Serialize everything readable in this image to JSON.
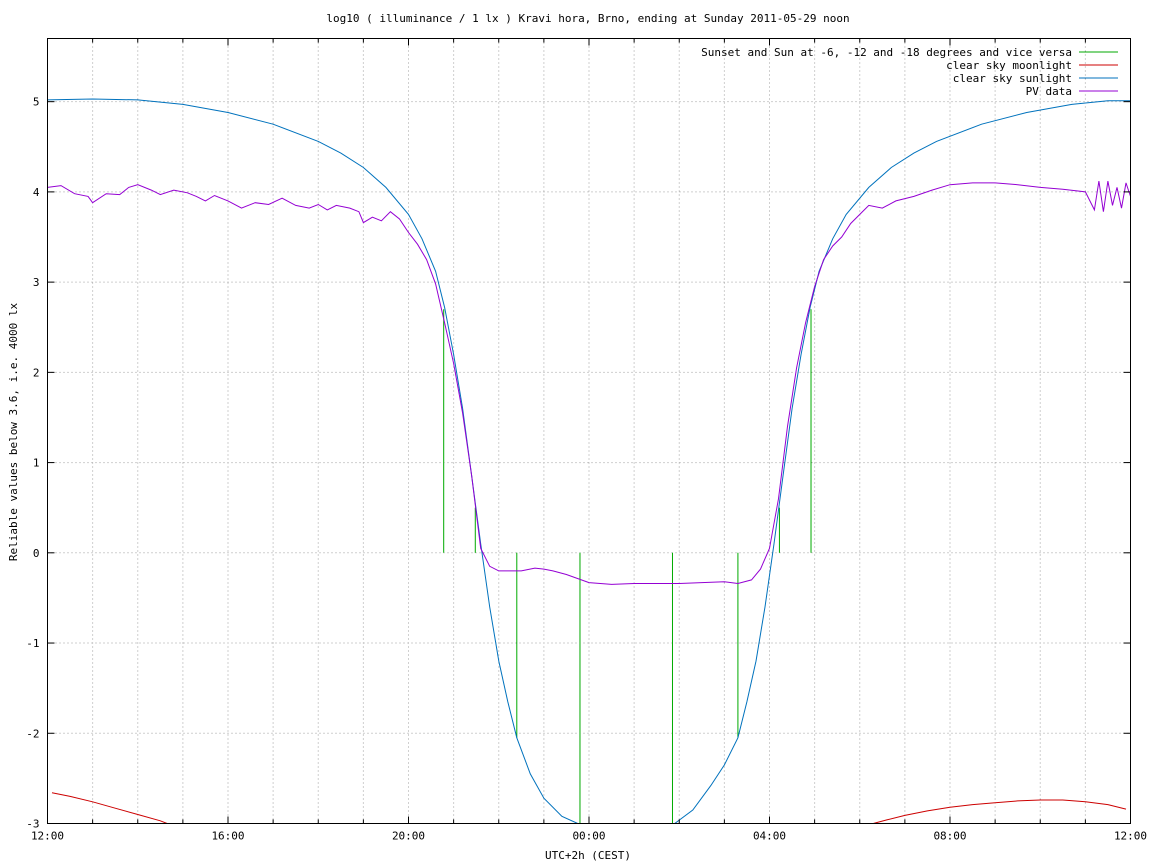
{
  "chart_data": {
    "type": "line",
    "title": "log10 ( illuminance / 1 lx ) Kravi hora, Brno, ending at Sunday 2011-05-29 noon",
    "xlabel": "UTC+2h (CEST)",
    "ylabel": "Reliable values below 3.6, i.e. 4000 lx",
    "xlim": [
      0,
      24
    ],
    "ylim": [
      -3,
      5.7
    ],
    "grid": true,
    "legend_position": "top-right",
    "x_unit_note": "hours since 12:00",
    "x_ticks": [
      {
        "value": 0,
        "label": "12:00"
      },
      {
        "value": 4,
        "label": "16:00"
      },
      {
        "value": 8,
        "label": "20:00"
      },
      {
        "value": 12,
        "label": "00:00"
      },
      {
        "value": 16,
        "label": "04:00"
      },
      {
        "value": 20,
        "label": "08:00"
      },
      {
        "value": 24,
        "label": "12:00"
      }
    ],
    "x_grid": [
      1,
      2,
      3,
      4,
      5,
      6,
      7,
      8,
      9,
      10,
      11,
      12,
      13,
      14,
      15,
      16,
      17,
      18,
      19,
      20,
      21,
      22,
      23
    ],
    "y_ticks": [
      {
        "value": -3,
        "label": "-3"
      },
      {
        "value": -2,
        "label": "-2"
      },
      {
        "value": -1,
        "label": "-1"
      },
      {
        "value": 0,
        "label": "0"
      },
      {
        "value": 1,
        "label": "1"
      },
      {
        "value": 2,
        "label": "2"
      },
      {
        "value": 3,
        "label": "3"
      },
      {
        "value": 4,
        "label": "4"
      },
      {
        "value": 5,
        "label": "5"
      }
    ],
    "series": [
      {
        "name": "Sunset and Sun at -6, -12 and -18 degrees and vice versa",
        "color": "#00aa00",
        "style": "impulses",
        "points": [
          [
            8.78,
            2.7
          ],
          [
            9.48,
            0.5
          ],
          [
            10.4,
            -2.05
          ],
          [
            11.8,
            -3.0
          ],
          [
            13.85,
            -3.0
          ],
          [
            15.3,
            -2.05
          ],
          [
            16.22,
            0.5
          ],
          [
            16.92,
            2.7
          ]
        ]
      },
      {
        "name": "clear sky moonlight",
        "color": "#cc0000",
        "style": "line",
        "points": [
          [
            0.1,
            -2.66
          ],
          [
            0.5,
            -2.7
          ],
          [
            1.0,
            -2.76
          ],
          [
            1.5,
            -2.83
          ],
          [
            2.0,
            -2.9
          ],
          [
            2.5,
            -2.97
          ],
          [
            2.65,
            -3.0
          ],
          [
            18.3,
            -3.0
          ],
          [
            18.6,
            -2.96
          ],
          [
            19.0,
            -2.91
          ],
          [
            19.5,
            -2.86
          ],
          [
            20.0,
            -2.82
          ],
          [
            20.5,
            -2.79
          ],
          [
            21.0,
            -2.77
          ],
          [
            21.5,
            -2.75
          ],
          [
            22.0,
            -2.74
          ],
          [
            22.5,
            -2.74
          ],
          [
            23.0,
            -2.76
          ],
          [
            23.5,
            -2.79
          ],
          [
            23.9,
            -2.84
          ]
        ]
      },
      {
        "name": "clear sky sunlight",
        "color": "#0072bd",
        "style": "line",
        "points": [
          [
            0.0,
            5.02
          ],
          [
            1.0,
            5.03
          ],
          [
            2.0,
            5.02
          ],
          [
            3.0,
            4.97
          ],
          [
            4.0,
            4.88
          ],
          [
            5.0,
            4.75
          ],
          [
            6.0,
            4.56
          ],
          [
            6.5,
            4.43
          ],
          [
            7.0,
            4.27
          ],
          [
            7.5,
            4.05
          ],
          [
            8.0,
            3.75
          ],
          [
            8.3,
            3.48
          ],
          [
            8.6,
            3.12
          ],
          [
            8.8,
            2.72
          ],
          [
            9.0,
            2.2
          ],
          [
            9.2,
            1.6
          ],
          [
            9.4,
            0.85
          ],
          [
            9.6,
            0.1
          ],
          [
            9.8,
            -0.6
          ],
          [
            10.0,
            -1.2
          ],
          [
            10.2,
            -1.65
          ],
          [
            10.4,
            -2.05
          ],
          [
            10.7,
            -2.45
          ],
          [
            11.0,
            -2.72
          ],
          [
            11.4,
            -2.92
          ],
          [
            11.75,
            -3.0
          ],
          [
            13.9,
            -3.0
          ],
          [
            14.3,
            -2.85
          ],
          [
            14.7,
            -2.58
          ],
          [
            15.0,
            -2.35
          ],
          [
            15.3,
            -2.05
          ],
          [
            15.5,
            -1.65
          ],
          [
            15.7,
            -1.2
          ],
          [
            15.9,
            -0.6
          ],
          [
            16.1,
            0.1
          ],
          [
            16.3,
            0.85
          ],
          [
            16.5,
            1.6
          ],
          [
            16.7,
            2.2
          ],
          [
            16.9,
            2.72
          ],
          [
            17.1,
            3.12
          ],
          [
            17.4,
            3.48
          ],
          [
            17.7,
            3.75
          ],
          [
            18.2,
            4.05
          ],
          [
            18.7,
            4.27
          ],
          [
            19.2,
            4.43
          ],
          [
            19.7,
            4.56
          ],
          [
            20.7,
            4.75
          ],
          [
            21.7,
            4.88
          ],
          [
            22.7,
            4.97
          ],
          [
            23.5,
            5.01
          ],
          [
            24.0,
            5.01
          ]
        ]
      },
      {
        "name": "PV data",
        "color": "#9400d3",
        "style": "line",
        "points": [
          [
            0.0,
            4.05
          ],
          [
            0.3,
            4.07
          ],
          [
            0.6,
            3.98
          ],
          [
            0.9,
            3.95
          ],
          [
            1.0,
            3.88
          ],
          [
            1.3,
            3.98
          ],
          [
            1.6,
            3.97
          ],
          [
            1.8,
            4.05
          ],
          [
            2.0,
            4.08
          ],
          [
            2.3,
            4.02
          ],
          [
            2.5,
            3.97
          ],
          [
            2.8,
            4.02
          ],
          [
            3.1,
            3.99
          ],
          [
            3.3,
            3.95
          ],
          [
            3.5,
            3.9
          ],
          [
            3.7,
            3.96
          ],
          [
            4.0,
            3.9
          ],
          [
            4.3,
            3.82
          ],
          [
            4.6,
            3.88
          ],
          [
            4.9,
            3.86
          ],
          [
            5.2,
            3.93
          ],
          [
            5.5,
            3.85
          ],
          [
            5.8,
            3.82
          ],
          [
            6.0,
            3.86
          ],
          [
            6.2,
            3.8
          ],
          [
            6.4,
            3.85
          ],
          [
            6.7,
            3.82
          ],
          [
            6.9,
            3.78
          ],
          [
            7.0,
            3.66
          ],
          [
            7.2,
            3.72
          ],
          [
            7.4,
            3.68
          ],
          [
            7.6,
            3.78
          ],
          [
            7.8,
            3.7
          ],
          [
            8.0,
            3.55
          ],
          [
            8.2,
            3.42
          ],
          [
            8.4,
            3.25
          ],
          [
            8.6,
            2.98
          ],
          [
            8.8,
            2.55
          ],
          [
            9.0,
            2.1
          ],
          [
            9.2,
            1.55
          ],
          [
            9.4,
            0.85
          ],
          [
            9.6,
            0.05
          ],
          [
            9.8,
            -0.15
          ],
          [
            10.0,
            -0.2
          ],
          [
            10.5,
            -0.2
          ],
          [
            10.8,
            -0.17
          ],
          [
            11.0,
            -0.18
          ],
          [
            11.2,
            -0.2
          ],
          [
            11.5,
            -0.24
          ],
          [
            12.0,
            -0.33
          ],
          [
            12.5,
            -0.35
          ],
          [
            13.0,
            -0.34
          ],
          [
            14.0,
            -0.34
          ],
          [
            14.5,
            -0.33
          ],
          [
            15.0,
            -0.32
          ],
          [
            15.3,
            -0.34
          ],
          [
            15.6,
            -0.3
          ],
          [
            15.8,
            -0.18
          ],
          [
            16.0,
            0.05
          ],
          [
            16.2,
            0.6
          ],
          [
            16.4,
            1.4
          ],
          [
            16.6,
            2.05
          ],
          [
            16.8,
            2.55
          ],
          [
            17.0,
            2.95
          ],
          [
            17.2,
            3.25
          ],
          [
            17.4,
            3.4
          ],
          [
            17.6,
            3.5
          ],
          [
            17.8,
            3.65
          ],
          [
            18.0,
            3.75
          ],
          [
            18.2,
            3.85
          ],
          [
            18.5,
            3.82
          ],
          [
            18.8,
            3.9
          ],
          [
            19.2,
            3.95
          ],
          [
            19.6,
            4.02
          ],
          [
            20.0,
            4.08
          ],
          [
            20.5,
            4.1
          ],
          [
            21.0,
            4.1
          ],
          [
            21.5,
            4.08
          ],
          [
            22.0,
            4.05
          ],
          [
            22.5,
            4.03
          ],
          [
            23.0,
            4.0
          ],
          [
            23.2,
            3.8
          ],
          [
            23.3,
            4.12
          ],
          [
            23.4,
            3.78
          ],
          [
            23.5,
            4.12
          ],
          [
            23.6,
            3.85
          ],
          [
            23.7,
            4.05
          ],
          [
            23.8,
            3.82
          ],
          [
            23.9,
            4.1
          ],
          [
            24.0,
            3.95
          ]
        ]
      }
    ]
  }
}
